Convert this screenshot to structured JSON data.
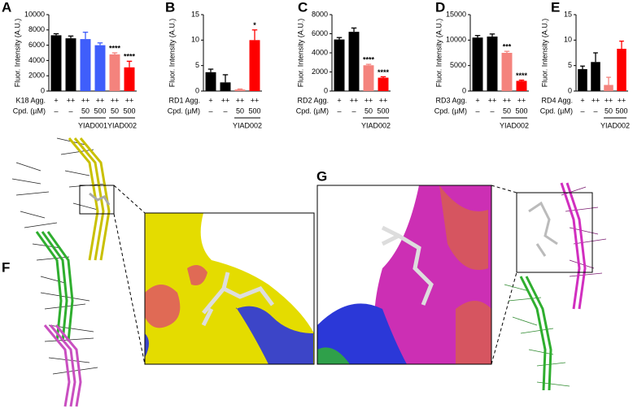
{
  "chart_data": [
    {
      "type": "bar",
      "label": "A",
      "ylabel": "Fluor. Intensity (A.U.)",
      "row_labels": [
        "K18 Agg.",
        "Cpd. (µM)"
      ],
      "categories": [
        "+",
        "++",
        "++",
        "++",
        "++",
        "++"
      ],
      "doses": [
        "–",
        "–",
        "50",
        "500",
        "50",
        "500"
      ],
      "groups": [
        null,
        null,
        "YIAD001",
        "YIAD001",
        "YIAD002",
        "YIAD002"
      ],
      "values": [
        7300,
        6900,
        6800,
        6000,
        4800,
        3100
      ],
      "errors": [
        200,
        300,
        900,
        300,
        200,
        800
      ],
      "annotations": [
        null,
        null,
        null,
        null,
        "****",
        "****"
      ],
      "colors": [
        "#000000",
        "#000000",
        "#3f5efb",
        "#3f5efb",
        "#f4837d",
        "#fe0000"
      ],
      "ylim": [
        0,
        10000
      ],
      "yticks": [
        0,
        2000,
        4000,
        6000,
        8000,
        10000
      ]
    },
    {
      "type": "bar",
      "label": "B",
      "ylabel": "Fluor. Intensity (A.U.)",
      "row_labels": [
        "RD1 Agg.",
        "Cpd. (µM)"
      ],
      "categories": [
        "+",
        "++",
        "++",
        "++"
      ],
      "doses": [
        "–",
        "–",
        "50",
        "500"
      ],
      "groups": [
        null,
        null,
        "YIAD002",
        "YIAD002"
      ],
      "values": [
        3.7,
        1.7,
        0.3,
        10
      ],
      "errors": [
        0.6,
        1.5,
        0.1,
        2
      ],
      "annotations": [
        null,
        null,
        null,
        "*"
      ],
      "colors": [
        "#000000",
        "#000000",
        "#f4837d",
        "#fe0000"
      ],
      "ylim": [
        0,
        15
      ],
      "yticks": [
        0,
        5,
        10,
        15
      ]
    },
    {
      "type": "bar",
      "label": "C",
      "ylabel": "Fluor. Intensity (A.U.)",
      "row_labels": [
        "RD2 Agg.",
        "Cpd. (µM)"
      ],
      "categories": [
        "+",
        "++",
        "++",
        "++"
      ],
      "doses": [
        "–",
        "–",
        "50",
        "500"
      ],
      "groups": [
        null,
        null,
        "YIAD002",
        "YIAD002"
      ],
      "values": [
        5400,
        6200,
        2700,
        1400
      ],
      "errors": [
        200,
        400,
        100,
        100
      ],
      "annotations": [
        null,
        null,
        "****",
        "****"
      ],
      "colors": [
        "#000000",
        "#000000",
        "#f4837d",
        "#fe0000"
      ],
      "ylim": [
        0,
        8000
      ],
      "yticks": [
        0,
        2000,
        4000,
        6000,
        8000
      ]
    },
    {
      "type": "bar",
      "label": "D",
      "ylabel": "Fluor. Intensity (A.U.)",
      "row_labels": [
        "RD3 Agg.",
        "Cpd. (µM)"
      ],
      "categories": [
        "+",
        "++",
        "++",
        "++"
      ],
      "doses": [
        "–",
        "–",
        "50",
        "500"
      ],
      "groups": [
        null,
        null,
        "YIAD002",
        "YIAD002"
      ],
      "values": [
        10500,
        10700,
        7500,
        2000
      ],
      "errors": [
        400,
        500,
        300,
        150
      ],
      "annotations": [
        null,
        null,
        "***",
        "****"
      ],
      "colors": [
        "#000000",
        "#000000",
        "#f4837d",
        "#fe0000"
      ],
      "ylim": [
        0,
        15000
      ],
      "yticks": [
        0,
        5000,
        10000,
        15000
      ]
    },
    {
      "type": "bar",
      "label": "E",
      "ylabel": "Fluor. Intensity (A.U.)",
      "row_labels": [
        "RD4 Agg.",
        "Cpd. (µM)"
      ],
      "categories": [
        "+",
        "++",
        "++",
        "++"
      ],
      "doses": [
        "–",
        "–",
        "50",
        "500"
      ],
      "groups": [
        null,
        null,
        "YIAD002",
        "YIAD002"
      ],
      "values": [
        4.3,
        5.7,
        1.2,
        8.3
      ],
      "errors": [
        0.6,
        1.8,
        1.5,
        1.5
      ],
      "annotations": [
        null,
        null,
        null,
        null
      ],
      "colors": [
        "#000000",
        "#000000",
        "#f4837d",
        "#fe0000"
      ],
      "ylim": [
        0,
        15
      ],
      "yticks": [
        0,
        5,
        10,
        15
      ]
    }
  ],
  "image_panels": [
    {
      "label": "F"
    },
    {
      "label": "G"
    }
  ]
}
